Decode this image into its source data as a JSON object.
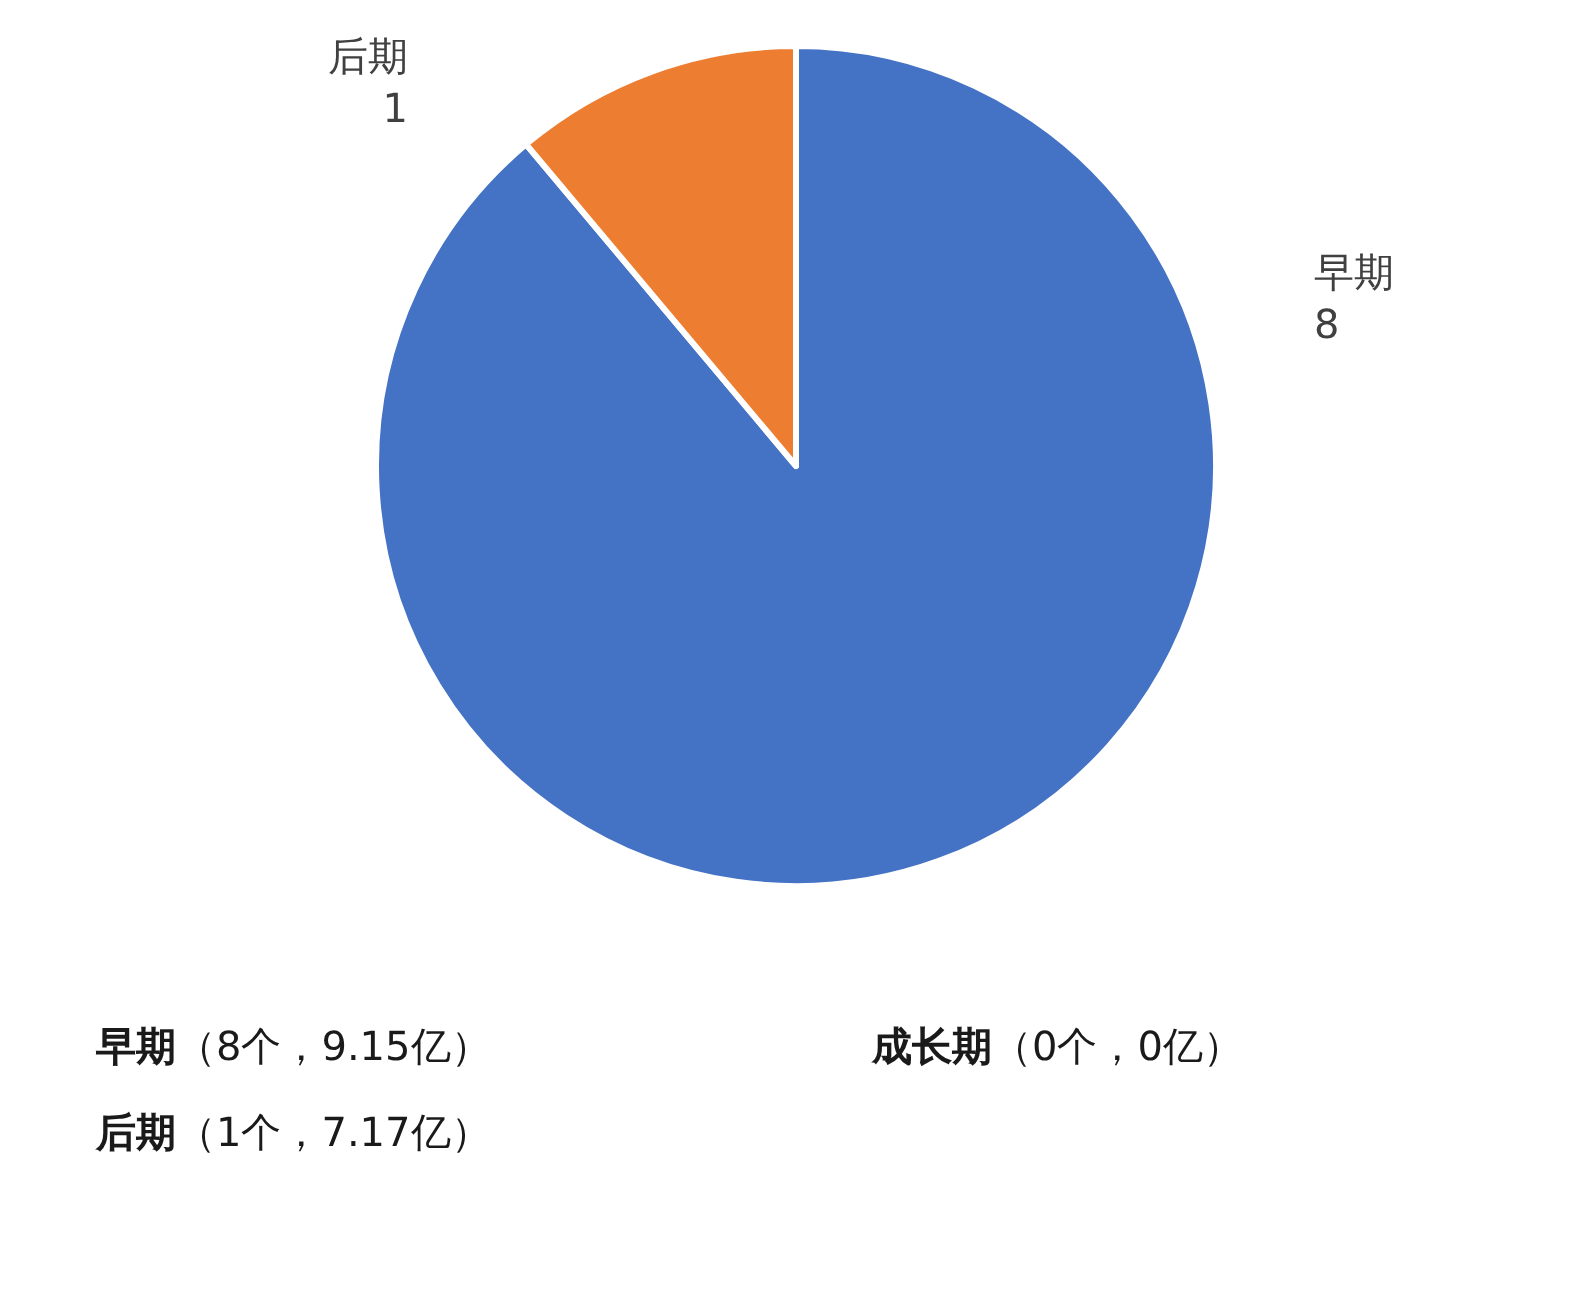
{
  "chart_data": {
    "type": "pie",
    "categories": [
      "早期",
      "后期"
    ],
    "values": [
      8,
      1
    ],
    "colors": [
      "#4472c4",
      "#ed7d31"
    ],
    "data_labels": true,
    "annotations": [
      "早期（8个，9.15亿）",
      "成长期（0个，0亿）",
      "后期（1个，7.17亿）"
    ]
  }
}
